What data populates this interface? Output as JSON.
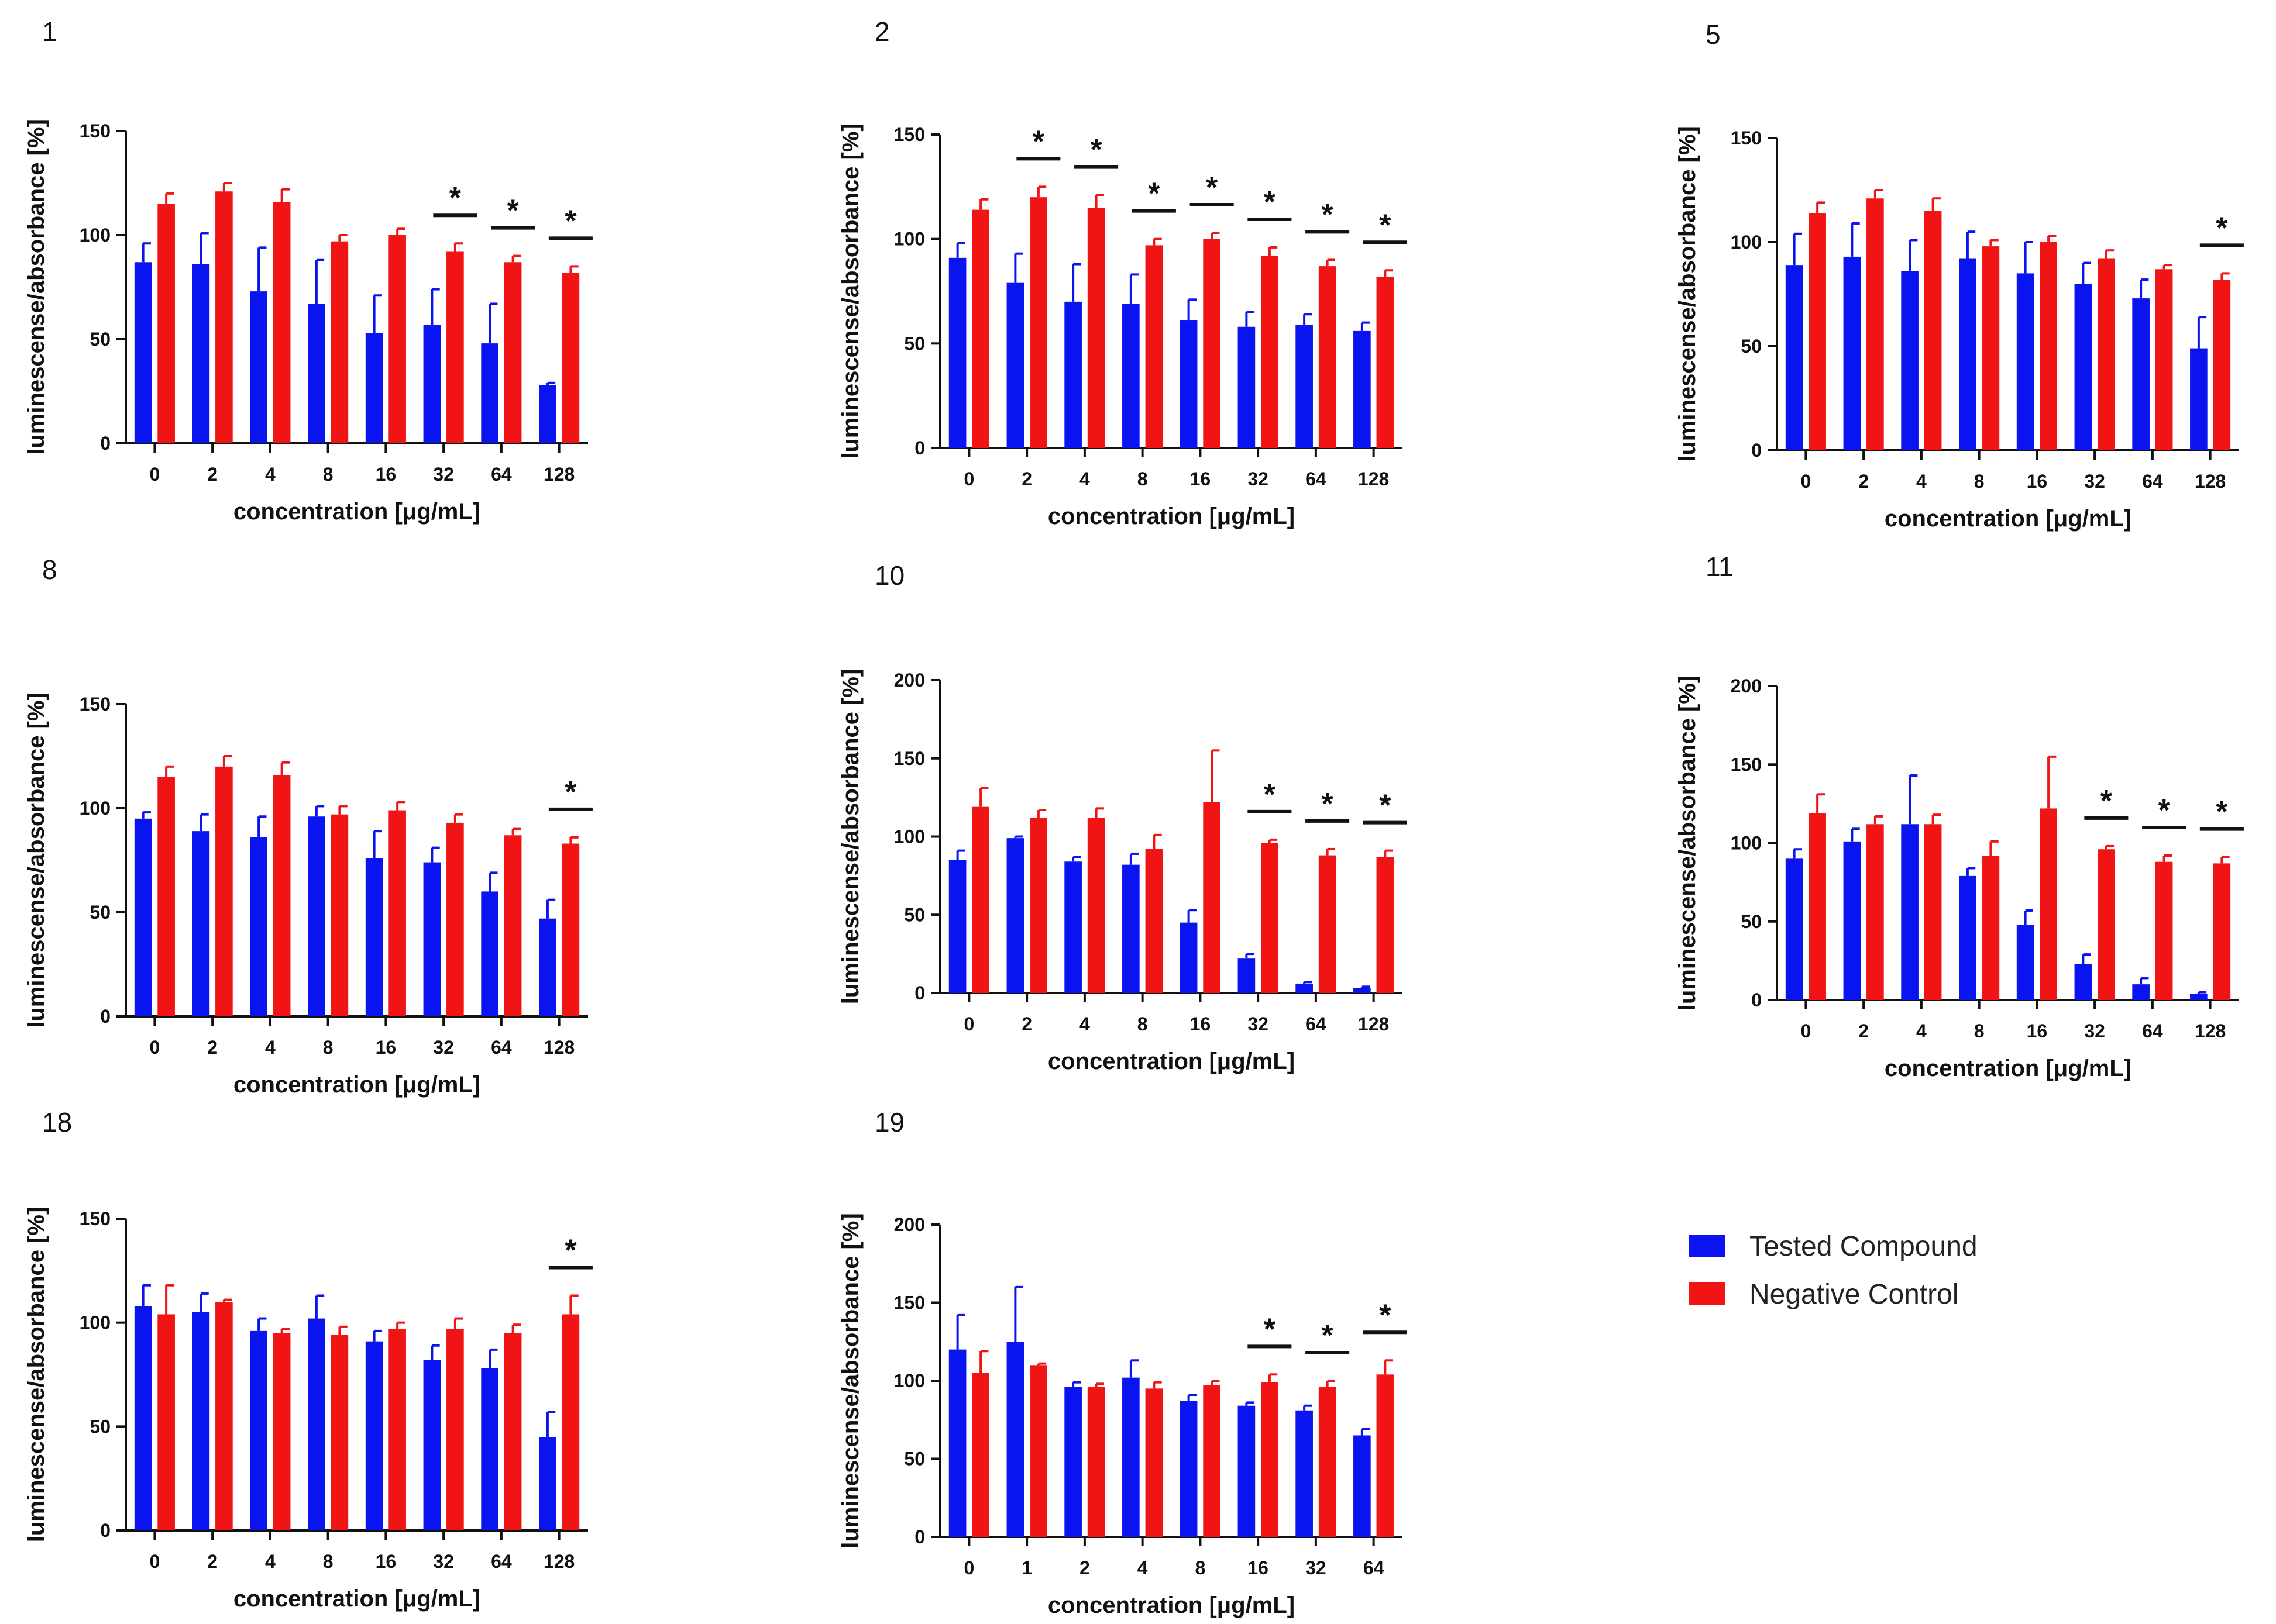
{
  "legend": {
    "entries": [
      {
        "label": "Tested Compound",
        "color": "#0a14f0"
      },
      {
        "label": "Negative Control",
        "color": "#f01414"
      }
    ]
  },
  "chart_data": [
    {
      "type": "bar",
      "title": "1",
      "xlabel": "concentration [μg/mL]",
      "ylabel": "luminescense/absorbance [%]",
      "ylim": [
        0,
        150
      ],
      "yticks": [
        0,
        50,
        100,
        150
      ],
      "categories": [
        "0",
        "2",
        "4",
        "8",
        "16",
        "32",
        "64",
        "128"
      ],
      "series": [
        {
          "name": "Tested Compound",
          "values": [
            87,
            86,
            73,
            67,
            53,
            57,
            48,
            28
          ],
          "errors": [
            9,
            15,
            21,
            21,
            18,
            17,
            19,
            1
          ]
        },
        {
          "name": "Negative Control",
          "values": [
            115,
            121,
            116,
            97,
            100,
            92,
            87,
            82
          ],
          "errors": [
            5,
            4,
            6,
            3,
            3,
            4,
            3,
            3
          ]
        }
      ],
      "significance": [
        "",
        "",
        "",
        "",
        "",
        "*",
        "*",
        "*"
      ]
    },
    {
      "type": "bar",
      "title": "2",
      "xlabel": "concentration [μg/mL]",
      "ylabel": "luminescense/absorbance [%]",
      "ylim": [
        0,
        150
      ],
      "yticks": [
        0,
        50,
        100,
        150
      ],
      "categories": [
        "0",
        "2",
        "4",
        "8",
        "16",
        "32",
        "64",
        "128"
      ],
      "series": [
        {
          "name": "Tested Compound",
          "values": [
            91,
            79,
            70,
            69,
            61,
            58,
            59,
            56
          ],
          "errors": [
            7,
            14,
            18,
            14,
            10,
            7,
            5,
            4
          ]
        },
        {
          "name": "Negative Control",
          "values": [
            114,
            120,
            115,
            97,
            100,
            92,
            87,
            82
          ],
          "errors": [
            5,
            5,
            6,
            3,
            3,
            4,
            3,
            3
          ]
        }
      ],
      "significance": [
        "",
        "*",
        "*",
        "*",
        "*",
        "*",
        "*",
        "*"
      ]
    },
    {
      "type": "bar",
      "title": "5",
      "xlabel": "concentration [μg/mL]",
      "ylabel": "luminescense/absorbance [%]",
      "ylim": [
        0,
        150
      ],
      "yticks": [
        0,
        50,
        100,
        150
      ],
      "categories": [
        "0",
        "2",
        "4",
        "8",
        "16",
        "32",
        "64",
        "128"
      ],
      "series": [
        {
          "name": "Tested Compound",
          "values": [
            89,
            93,
            86,
            92,
            85,
            80,
            73,
            49
          ],
          "errors": [
            15,
            16,
            15,
            13,
            15,
            10,
            9,
            15
          ]
        },
        {
          "name": "Negative Control",
          "values": [
            114,
            121,
            115,
            98,
            100,
            92,
            87,
            82
          ],
          "errors": [
            5,
            4,
            6,
            3,
            3,
            4,
            2,
            3
          ]
        }
      ],
      "significance": [
        "",
        "",
        "",
        "",
        "",
        "",
        "",
        "*"
      ]
    },
    {
      "type": "bar",
      "title": "8",
      "xlabel": "concentration [μg/mL]",
      "ylabel": "luminescense/absorbance [%]",
      "ylim": [
        0,
        150
      ],
      "yticks": [
        0,
        50,
        100,
        150
      ],
      "categories": [
        "0",
        "2",
        "4",
        "8",
        "16",
        "32",
        "64",
        "128"
      ],
      "series": [
        {
          "name": "Tested Compound",
          "values": [
            95,
            89,
            86,
            96,
            76,
            74,
            60,
            47
          ],
          "errors": [
            3,
            8,
            10,
            5,
            13,
            7,
            9,
            9
          ]
        },
        {
          "name": "Negative Control",
          "values": [
            115,
            120,
            116,
            97,
            99,
            93,
            87,
            83
          ],
          "errors": [
            5,
            5,
            6,
            4,
            4,
            4,
            3,
            3
          ]
        }
      ],
      "significance": [
        "",
        "",
        "",
        "",
        "",
        "",
        "",
        "*"
      ]
    },
    {
      "type": "bar",
      "title": "10",
      "xlabel": "concentration [μg/mL]",
      "ylabel": "luminescense/absorbance [%]",
      "ylim": [
        0,
        200
      ],
      "yticks": [
        0,
        50,
        100,
        150,
        200
      ],
      "categories": [
        "0",
        "2",
        "4",
        "8",
        "16",
        "32",
        "64",
        "128"
      ],
      "series": [
        {
          "name": "Tested Compound",
          "values": [
            85,
            99,
            84,
            82,
            45,
            22,
            6,
            3
          ],
          "errors": [
            6,
            1,
            3,
            7,
            8,
            3,
            1,
            1
          ]
        },
        {
          "name": "Negative Control",
          "values": [
            119,
            112,
            112,
            92,
            122,
            96,
            88,
            87
          ],
          "errors": [
            12,
            5,
            6,
            9,
            33,
            2,
            4,
            4
          ]
        }
      ],
      "significance": [
        "",
        "",
        "",
        "",
        "",
        "*",
        "*",
        "*"
      ]
    },
    {
      "type": "bar",
      "title": "11",
      "xlabel": "concentration [μg/mL]",
      "ylabel": "luminescense/absorbance [%]",
      "ylim": [
        0,
        200
      ],
      "yticks": [
        0,
        50,
        100,
        150,
        200
      ],
      "categories": [
        "0",
        "2",
        "4",
        "8",
        "16",
        "32",
        "64",
        "128"
      ],
      "series": [
        {
          "name": "Tested Compound",
          "values": [
            90,
            101,
            112,
            79,
            48,
            23,
            10,
            4
          ],
          "errors": [
            6,
            8,
            31,
            5,
            9,
            6,
            4,
            1
          ]
        },
        {
          "name": "Negative Control",
          "values": [
            119,
            112,
            112,
            92,
            122,
            96,
            88,
            87
          ],
          "errors": [
            12,
            5,
            6,
            9,
            33,
            2,
            4,
            4
          ]
        }
      ],
      "significance": [
        "",
        "",
        "",
        "",
        "",
        "*",
        "*",
        "*"
      ]
    },
    {
      "type": "bar",
      "title": "18",
      "xlabel": "concentration [μg/mL]",
      "ylabel": "luminescense/absorbance [%]",
      "ylim": [
        0,
        150
      ],
      "yticks": [
        0,
        50,
        100,
        150
      ],
      "categories": [
        "0",
        "2",
        "4",
        "8",
        "16",
        "32",
        "64",
        "128"
      ],
      "series": [
        {
          "name": "Tested Compound",
          "values": [
            108,
            105,
            96,
            102,
            91,
            82,
            78,
            45
          ],
          "errors": [
            10,
            9,
            6,
            11,
            5,
            7,
            9,
            12
          ]
        },
        {
          "name": "Negative Control",
          "values": [
            104,
            110,
            95,
            94,
            97,
            97,
            95,
            104
          ],
          "errors": [
            14,
            1,
            2,
            4,
            3,
            5,
            4,
            9
          ]
        }
      ],
      "significance": [
        "",
        "",
        "",
        "",
        "",
        "",
        "",
        "*"
      ]
    },
    {
      "type": "bar",
      "title": "19",
      "xlabel": "concentration [μg/mL]",
      "ylabel": "luminescense/absorbance [%]",
      "ylim": [
        0,
        200
      ],
      "yticks": [
        0,
        50,
        100,
        150,
        200
      ],
      "categories": [
        "0",
        "1",
        "2",
        "4",
        "8",
        "16",
        "32",
        "64"
      ],
      "series": [
        {
          "name": "Tested Compound",
          "values": [
            120,
            125,
            96,
            102,
            87,
            84,
            81,
            65
          ],
          "errors": [
            22,
            35,
            3,
            11,
            4,
            2,
            3,
            4
          ]
        },
        {
          "name": "Negative Control",
          "values": [
            105,
            110,
            96,
            95,
            97,
            99,
            96,
            104
          ],
          "errors": [
            14,
            1,
            2,
            4,
            3,
            5,
            4,
            9
          ]
        }
      ],
      "significance": [
        "",
        "",
        "",
        "",
        "",
        "*",
        "*",
        "*"
      ]
    }
  ]
}
